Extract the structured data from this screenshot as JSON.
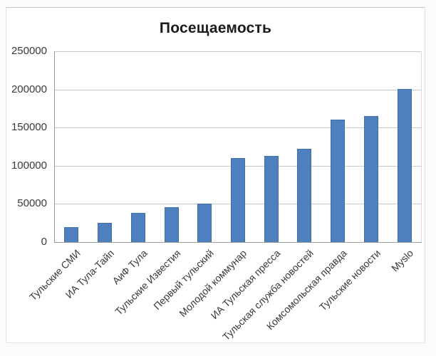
{
  "chart_data": {
    "type": "bar",
    "title": "Посещаемость",
    "categories": [
      "Тульские СМИ",
      "ИА Тула-Тайп",
      "АиФ Тула",
      "Тульские Известия",
      "Первый тульский",
      "Молодой коммунар",
      "ИА Тульская пресса",
      "Тульская служба новостей",
      "Комсомольская правда",
      "Тульские новости",
      "Myslo"
    ],
    "values": [
      19500,
      25000,
      38500,
      45500,
      50000,
      110000,
      112500,
      122500,
      160000,
      165500,
      201000
    ],
    "ylim": [
      0,
      250000
    ],
    "yticks": [
      0,
      50000,
      100000,
      150000,
      200000,
      250000
    ],
    "ytick_labels": [
      "0",
      "50000",
      "100000",
      "150000",
      "200000",
      "250000"
    ],
    "xlabel": "",
    "ylabel": "",
    "grid": "horizontal",
    "legend": "none",
    "x_label_rotation_deg": 45,
    "colors": {
      "bar_fill": "#4d80bc",
      "bar_border": "#406ea6",
      "gridline": "#c9c9c9",
      "axis_line": "#9b9b9b",
      "tick_text": "#3a3a3a",
      "title_text": "#1a1a1a",
      "chart_background": "#ffffff"
    }
  }
}
